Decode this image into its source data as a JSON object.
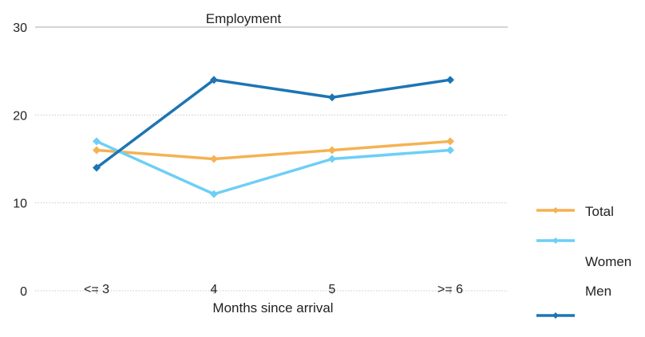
{
  "chart_data": {
    "type": "line",
    "title": "Employment",
    "xlabel": "Months since arrival",
    "ylabel": "",
    "categories": [
      "<= 3",
      "4",
      "5",
      ">= 6"
    ],
    "ylim": [
      0,
      30
    ],
    "yticks": [
      0,
      10,
      20,
      30
    ],
    "grid": true,
    "legend_position": "right",
    "series": [
      {
        "name": "Total",
        "color": "#F5B252",
        "values": [
          16,
          15,
          16,
          17
        ]
      },
      {
        "name": "Women",
        "color": "#6DCFF6",
        "values": [
          17,
          11,
          15,
          16
        ]
      },
      {
        "name": "Men",
        "color": "#1C75B4",
        "values": [
          14,
          24,
          22,
          24
        ]
      }
    ]
  }
}
